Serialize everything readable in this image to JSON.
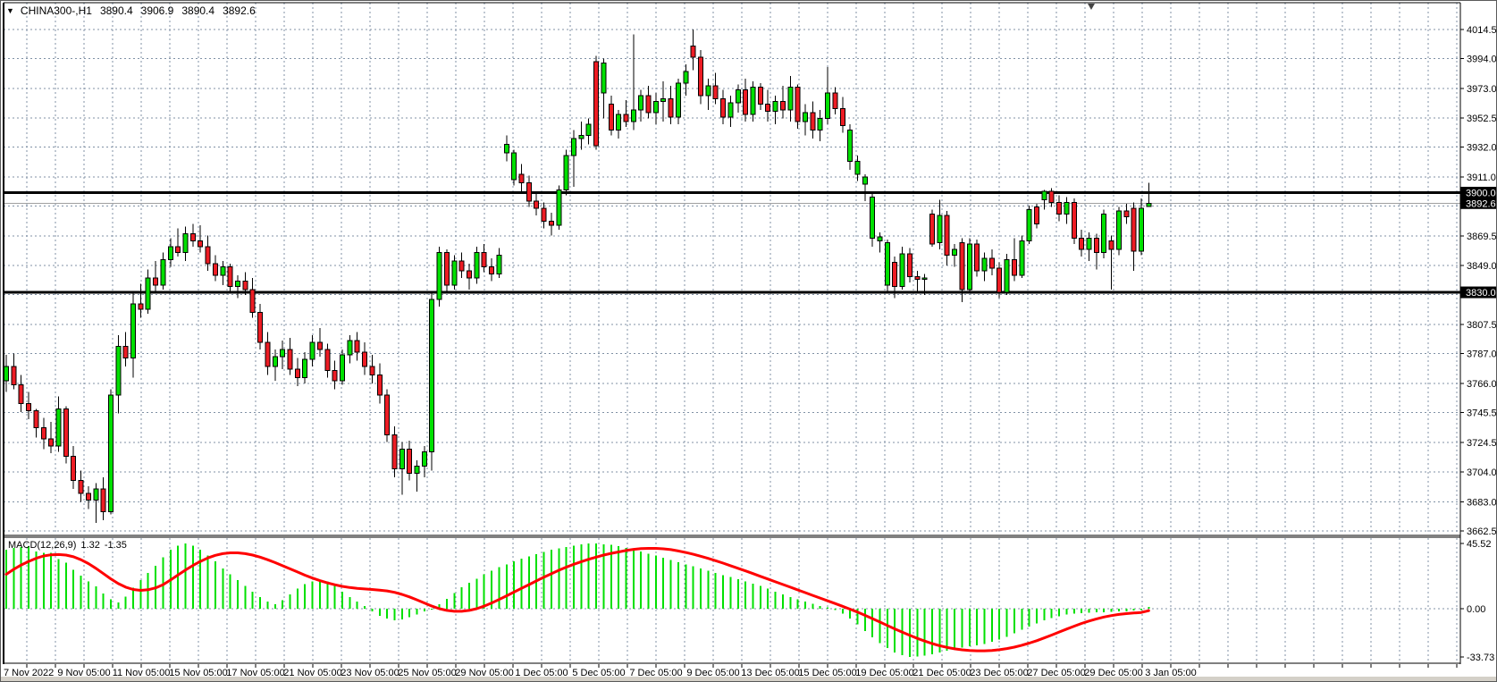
{
  "window": {
    "symbol": "CHINA300-,H1",
    "ohlc": {
      "open": "3890.4",
      "high": "3906.9",
      "low": "3890.4",
      "close": "3892.6"
    }
  },
  "indicator": {
    "name": "MACD(12,26,9)",
    "value_main": "1.32",
    "value_signal": "-1.35"
  },
  "colors": {
    "background": "#ffffff",
    "grid": "#8091A5",
    "bull": "#00E000",
    "bear": "#ED1C24",
    "wick": "#000000",
    "hline": "#000000",
    "bid_line": "#A0A0A0",
    "badge_bg": "#000000",
    "badge_text": "#ffffff",
    "macd_hist": "#00E000",
    "macd_signal": "#FF0000",
    "axis_text": "#000000",
    "frame": "#000000",
    "bottom_strip": "#d4d0c8"
  },
  "price_axis": {
    "ticks": [
      "4014.5",
      "3994.0",
      "3973.0",
      "3952.5",
      "3932.0",
      "3911.0",
      "3869.5",
      "3849.0",
      "3807.5",
      "3787.0",
      "3766.0",
      "3745.5",
      "3724.5",
      "3704.0",
      "3683.0",
      "3662.5"
    ],
    "badges": [
      {
        "label": "3900.0",
        "price": 3900.0,
        "kind": "hline"
      },
      {
        "label": "3892.6",
        "price": 3892.6,
        "kind": "bid"
      },
      {
        "label": "3830.0",
        "price": 3830.0,
        "kind": "hline"
      }
    ]
  },
  "macd_axis": {
    "ticks": [
      {
        "label": "45.52",
        "value": 45.52
      },
      {
        "label": "0.00",
        "value": 0.0
      },
      {
        "label": "-33.73",
        "value": -33.73
      }
    ]
  },
  "time_axis": {
    "labels": [
      "7 Nov 2022",
      "9 Nov 05:00",
      "11 Nov 05:00",
      "15 Nov 05:00",
      "17 Nov 05:00",
      "21 Nov 05:00",
      "23 Nov 05:00",
      "25 Nov 05:00",
      "29 Nov 05:00",
      "1 Dec 05:00",
      "5 Dec 05:00",
      "7 Dec 05:00",
      "9 Dec 05:00",
      "13 Dec 05:00",
      "15 Dec 05:00",
      "19 Dec 05:00",
      "21 Dec 05:00",
      "23 Dec 05:00",
      "27 Dec 05:00",
      "29 Dec 05:00",
      "3 Jan 05:00"
    ]
  },
  "chart_data": [
    {
      "type": "candlestick",
      "title": "CHINA300- H1",
      "ylim": [
        3662.5,
        4014.5
      ],
      "grid_prices": [
        4014.5,
        3994.0,
        3973.0,
        3952.5,
        3932.0,
        3911.0,
        3890.5,
        3869.5,
        3849.0,
        3828.5,
        3807.5,
        3787.0,
        3766.0,
        3745.5,
        3724.5,
        3704.0,
        3683.0,
        3662.5
      ],
      "hlines": [
        3900.0,
        3830.0
      ],
      "bid": 3892.6,
      "candles_ohlc": [
        [
          3768,
          3786,
          3760,
          3778
        ],
        [
          3778,
          3787,
          3762,
          3765
        ],
        [
          3765,
          3772,
          3746,
          3752
        ],
        [
          3752,
          3760,
          3741,
          3747
        ],
        [
          3747,
          3748,
          3728,
          3735
        ],
        [
          3735,
          3742,
          3720,
          3727
        ],
        [
          3727,
          3739,
          3717,
          3722
        ],
        [
          3722,
          3757,
          3718,
          3748
        ],
        [
          3748,
          3750,
          3710,
          3715
        ],
        [
          3715,
          3722,
          3692,
          3698
        ],
        [
          3698,
          3705,
          3683,
          3689
        ],
        [
          3689,
          3694,
          3678,
          3684
        ],
        [
          3684,
          3696,
          3668,
          3692
        ],
        [
          3692,
          3700,
          3670,
          3676
        ],
        [
          3676,
          3762,
          3674,
          3758
        ],
        [
          3758,
          3800,
          3745,
          3792
        ],
        [
          3792,
          3802,
          3778,
          3784
        ],
        [
          3784,
          3830,
          3770,
          3822
        ],
        [
          3822,
          3836,
          3812,
          3818
        ],
        [
          3818,
          3846,
          3815,
          3840
        ],
        [
          3840,
          3852,
          3830,
          3835
        ],
        [
          3835,
          3858,
          3832,
          3853
        ],
        [
          3853,
          3868,
          3848,
          3862
        ],
        [
          3862,
          3875,
          3855,
          3858
        ],
        [
          3858,
          3876,
          3852,
          3871
        ],
        [
          3871,
          3878,
          3862,
          3866
        ],
        [
          3866,
          3877,
          3858,
          3862
        ],
        [
          3862,
          3870,
          3845,
          3850
        ],
        [
          3850,
          3856,
          3838,
          3842
        ],
        [
          3842,
          3852,
          3835,
          3848
        ],
        [
          3848,
          3850,
          3830,
          3834
        ],
        [
          3834,
          3842,
          3826,
          3838
        ],
        [
          3838,
          3844,
          3828,
          3832
        ],
        [
          3832,
          3840,
          3812,
          3816
        ],
        [
          3816,
          3822,
          3790,
          3795
        ],
        [
          3795,
          3802,
          3772,
          3778
        ],
        [
          3778,
          3790,
          3768,
          3785
        ],
        [
          3785,
          3796,
          3776,
          3790
        ],
        [
          3790,
          3798,
          3772,
          3776
        ],
        [
          3776,
          3784,
          3764,
          3770
        ],
        [
          3770,
          3788,
          3766,
          3783
        ],
        [
          3783,
          3800,
          3778,
          3795
        ],
        [
          3795,
          3805,
          3785,
          3790
        ],
        [
          3790,
          3794,
          3770,
          3775
        ],
        [
          3775,
          3782,
          3762,
          3768
        ],
        [
          3768,
          3790,
          3765,
          3786
        ],
        [
          3786,
          3800,
          3780,
          3796
        ],
        [
          3796,
          3802,
          3782,
          3788
        ],
        [
          3788,
          3795,
          3772,
          3778
        ],
        [
          3778,
          3786,
          3766,
          3772
        ],
        [
          3772,
          3780,
          3752,
          3758
        ],
        [
          3758,
          3762,
          3725,
          3730
        ],
        [
          3730,
          3736,
          3700,
          3706
        ],
        [
          3706,
          3725,
          3688,
          3720
        ],
        [
          3720,
          3726,
          3698,
          3703
        ],
        [
          3703,
          3712,
          3690,
          3708
        ],
        [
          3708,
          3722,
          3700,
          3718
        ],
        [
          3718,
          3830,
          3705,
          3825
        ],
        [
          3825,
          3862,
          3820,
          3858
        ],
        [
          3858,
          3860,
          3830,
          3835
        ],
        [
          3835,
          3856,
          3832,
          3852
        ],
        [
          3852,
          3858,
          3840,
          3845
        ],
        [
          3845,
          3850,
          3832,
          3840
        ],
        [
          3840,
          3862,
          3836,
          3858
        ],
        [
          3858,
          3864,
          3844,
          3848
        ],
        [
          3848,
          3854,
          3838,
          3843
        ],
        [
          3843,
          3861,
          3840,
          3856
        ],
        [
          3928,
          3940,
          3922,
          3934
        ],
        [
          3909,
          3930,
          3905,
          3928
        ],
        [
          3913,
          3920,
          3900,
          3907
        ],
        [
          3907,
          3912,
          3890,
          3894
        ],
        [
          3894,
          3900,
          3884,
          3889
        ],
        [
          3889,
          3893,
          3875,
          3880
        ],
        [
          3880,
          3886,
          3870,
          3877
        ],
        [
          3877,
          3905,
          3874,
          3902
        ],
        [
          3902,
          3930,
          3898,
          3926
        ],
        [
          3926,
          3944,
          3904,
          3938
        ],
        [
          3938,
          3950,
          3930,
          3940
        ],
        [
          3940,
          3952,
          3934,
          3948
        ],
        [
          3992,
          3996,
          3930,
          3933
        ],
        [
          3970,
          3994,
          3952,
          3991
        ],
        [
          3962,
          3968,
          3940,
          3944
        ],
        [
          3944,
          3958,
          3938,
          3955
        ],
        [
          3955,
          3965,
          3946,
          3950
        ],
        [
          3950,
          4011,
          3944,
          3958
        ],
        [
          3958,
          3972,
          3950,
          3968
        ],
        [
          3968,
          3975,
          3952,
          3956
        ],
        [
          3956,
          3970,
          3948,
          3964
        ],
        [
          3964,
          3978,
          3950,
          3966
        ],
        [
          3966,
          3975,
          3948,
          3953
        ],
        [
          3953,
          3980,
          3948,
          3977
        ],
        [
          3977,
          3990,
          3968,
          3985
        ],
        [
          4003,
          4014.5,
          3986,
          3995
        ],
        [
          3995,
          4000,
          3962,
          3968
        ],
        [
          3968,
          3980,
          3958,
          3975
        ],
        [
          3975,
          3984,
          3962,
          3966
        ],
        [
          3966,
          3972,
          3948,
          3953
        ],
        [
          3953,
          3968,
          3946,
          3963
        ],
        [
          3963,
          3976,
          3956,
          3972
        ],
        [
          3972,
          3980,
          3950,
          3955
        ],
        [
          3955,
          3978,
          3950,
          3974
        ],
        [
          3974,
          3977,
          3958,
          3962
        ],
        [
          3962,
          3972,
          3950,
          3957
        ],
        [
          3957,
          3968,
          3948,
          3964
        ],
        [
          3964,
          3975,
          3952,
          3958
        ],
        [
          3958,
          3982,
          3950,
          3974
        ],
        [
          3974,
          3976,
          3945,
          3950
        ],
        [
          3950,
          3962,
          3940,
          3956
        ],
        [
          3956,
          3964,
          3938,
          3944
        ],
        [
          3944,
          3958,
          3936,
          3952
        ],
        [
          3952,
          3988,
          3948,
          3970
        ],
        [
          3970,
          3974,
          3955,
          3959
        ],
        [
          3959,
          3967,
          3942,
          3947
        ],
        [
          3922,
          3948,
          3916,
          3944
        ],
        [
          3913,
          3926,
          3908,
          3922
        ],
        [
          3906,
          3913,
          3894,
          3911
        ],
        [
          3868,
          3899,
          3862,
          3897
        ],
        [
          3866,
          3872,
          3858,
          3869
        ],
        [
          3835,
          3867,
          3830,
          3865
        ],
        [
          3851,
          3855,
          3826,
          3834
        ],
        [
          3834,
          3862,
          3832,
          3857
        ],
        [
          3857,
          3861,
          3837,
          3841
        ],
        [
          3841,
          3845,
          3831,
          3839
        ],
        [
          3839,
          3843,
          3828,
          3840
        ],
        [
          3885,
          3888,
          3862,
          3864
        ],
        [
          3865,
          3895,
          3860,
          3884
        ],
        [
          3884,
          3887,
          3849,
          3856
        ],
        [
          3856,
          3864,
          3848,
          3860
        ],
        [
          3865,
          3868,
          3823,
          3832
        ],
        [
          3832,
          3868,
          3830,
          3864
        ],
        [
          3864,
          3867,
          3841,
          3845
        ],
        [
          3845,
          3858,
          3838,
          3854
        ],
        [
          3854,
          3860,
          3842,
          3847
        ],
        [
          3847,
          3851,
          3826,
          3830
        ],
        [
          3830,
          3857,
          3828,
          3853
        ],
        [
          3853,
          3868,
          3838,
          3842
        ],
        [
          3842,
          3870,
          3840,
          3866
        ],
        [
          3866,
          3891,
          3864,
          3888
        ],
        [
          3890,
          3892,
          3875,
          3878
        ],
        [
          3895,
          3902,
          3888,
          3901
        ],
        [
          3901,
          3903,
          3890,
          3893
        ],
        [
          3893,
          3898,
          3880,
          3885
        ],
        [
          3885,
          3897,
          3878,
          3893
        ],
        [
          3893,
          3896,
          3864,
          3868
        ],
        [
          3868,
          3874,
          3855,
          3860
        ],
        [
          3860,
          3872,
          3852,
          3868
        ],
        [
          3868,
          3871,
          3846,
          3858
        ],
        [
          3858,
          3888,
          3854,
          3885
        ],
        [
          3866,
          3870,
          3832,
          3860
        ],
        [
          3860,
          3890,
          3856,
          3887
        ],
        [
          3887,
          3892,
          3878,
          3883
        ],
        [
          3889,
          3893,
          3845,
          3859
        ],
        [
          3859,
          3896,
          3856,
          3889
        ],
        [
          3890.4,
          3906.9,
          3890.4,
          3892.6
        ]
      ]
    },
    {
      "type": "macd",
      "params": "12,26,9",
      "ylim": [
        -33.73,
        45.52
      ],
      "histogram": [
        41,
        42.5,
        43,
        43.5,
        40,
        39,
        39,
        34.5,
        32,
        27,
        23,
        19,
        15.5,
        10.5,
        6.5,
        4.5,
        8.5,
        14.5,
        20,
        25,
        30,
        36,
        41,
        44,
        45.5,
        44,
        41,
        37,
        33,
        28,
        24,
        20,
        16,
        12,
        8,
        5,
        3,
        6,
        10,
        14,
        17,
        19,
        20,
        19,
        16,
        12,
        8,
        5,
        2,
        -2,
        -5,
        -7,
        -8,
        -7.5,
        -6,
        -4,
        -2,
        -0.5,
        3,
        7,
        11,
        15,
        18,
        21,
        24,
        26.5,
        29,
        31,
        33,
        35,
        36.5,
        38,
        39.5,
        41,
        42,
        43,
        44,
        45,
        45.5,
        45.5,
        45,
        44.5,
        43.5,
        42.5,
        41.5,
        40,
        38.5,
        37,
        35.5,
        34,
        32.5,
        31,
        29.5,
        28,
        26.5,
        25,
        23.5,
        22,
        20.5,
        19,
        17.5,
        16,
        14,
        12,
        10,
        8,
        6.5,
        5,
        3.5,
        2,
        0.8,
        -1,
        -3.5,
        -7,
        -11,
        -15.5,
        -20,
        -24,
        -27.5,
        -30.5,
        -32.5,
        -33.7,
        -33.5,
        -32.8,
        -31.8,
        -30.5,
        -29.2,
        -28,
        -27,
        -26.2,
        -25.5,
        -24.5,
        -23.2,
        -21.5,
        -19.5,
        -17.2,
        -14.8,
        -12.4,
        -10.2,
        -8.2,
        -6.5,
        -5.2,
        -4.2,
        -3.5,
        -3,
        -2.8,
        -2.6,
        -2.4,
        -2.2,
        -2,
        -1.8,
        -1.4,
        -0.8,
        1.32
      ],
      "signal": [
        24,
        27.5,
        30.5,
        33,
        35.2,
        36.8,
        37.6,
        37.8,
        37.4,
        36.2,
        34.2,
        31.5,
        28.2,
        24.5,
        20.8,
        17.5,
        15,
        13.4,
        12.8,
        13.2,
        14.5,
        16.8,
        20,
        23.5,
        27,
        30.2,
        33,
        35.4,
        37.2,
        38.4,
        39,
        39,
        38.4,
        37.4,
        36,
        34.2,
        32.2,
        30,
        27.8,
        25.6,
        23.4,
        21.4,
        19.6,
        18,
        16.7,
        15.6,
        14.8,
        14.2,
        13.8,
        13.4,
        13,
        12.4,
        11.4,
        10,
        8.2,
        6.2,
        4,
        1.8,
        0,
        -1.2,
        -1.8,
        -1.8,
        -1.2,
        0,
        1.8,
        4,
        6.4,
        9,
        11.6,
        14.2,
        16.8,
        19.4,
        22,
        24.4,
        26.8,
        29,
        31,
        32.8,
        34.5,
        36,
        37.4,
        38.6,
        39.6,
        40.6,
        41.4,
        41.9,
        42.1,
        42.1,
        41.8,
        41.2,
        40.3,
        39.2,
        38,
        36.6,
        35.1,
        33.5,
        31.8,
        30,
        28.2,
        26.4,
        24.5,
        22.6,
        20.7,
        18.8,
        16.9,
        15,
        13.1,
        11.2,
        9.3,
        7.4,
        5.5,
        3.6,
        1.7,
        -0.3,
        -2.4,
        -4.6,
        -6.9,
        -9.3,
        -11.7,
        -14.1,
        -16.4,
        -18.6,
        -20.7,
        -22.6,
        -24.3,
        -25.8,
        -27,
        -28,
        -28.7,
        -29.2,
        -29.4,
        -29.4,
        -29.1,
        -28.6,
        -27.8,
        -26.8,
        -25.5,
        -24,
        -22.3,
        -20.4,
        -18.4,
        -16.3,
        -14.2,
        -12.2,
        -10.3,
        -8.6,
        -7.1,
        -5.8,
        -4.8,
        -4,
        -3.4,
        -3,
        -2.6,
        -1.35
      ]
    }
  ]
}
